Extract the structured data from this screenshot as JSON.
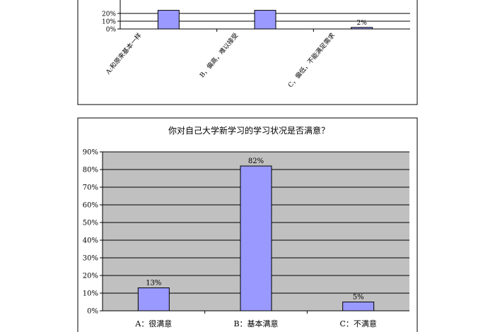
{
  "chart_data": [
    {
      "type": "bar",
      "title": "",
      "xlabel": "",
      "ylabel": "",
      "categories": [
        "A:和原来基本一样",
        "B，偏高，难以接受",
        "C，偏低，不能满足需求"
      ],
      "values": [
        24,
        24,
        2
      ],
      "data_labels": [
        "",
        "",
        "2%"
      ],
      "y_ticks": [
        "0%",
        "10%",
        "20%"
      ],
      "ylim": [
        0,
        20
      ],
      "grid": true,
      "bar_color": "#9999ff",
      "plot_bg": "#ffffff"
    },
    {
      "type": "bar",
      "title": "你对自己大学新学习的学习状况是否满意？",
      "xlabel": "",
      "ylabel": "",
      "categories": [
        "A：很满意",
        "B：基本满意",
        "C：不满意"
      ],
      "values": [
        13,
        82,
        5
      ],
      "data_labels": [
        "13%",
        "82%",
        "5%"
      ],
      "y_ticks": [
        "0%",
        "10%",
        "20%",
        "30%",
        "40%",
        "50%",
        "60%",
        "70%",
        "80%",
        "90%"
      ],
      "ylim": [
        0,
        90
      ],
      "grid": true,
      "bar_color": "#9999ff",
      "plot_bg": "#c0c0c0"
    }
  ]
}
